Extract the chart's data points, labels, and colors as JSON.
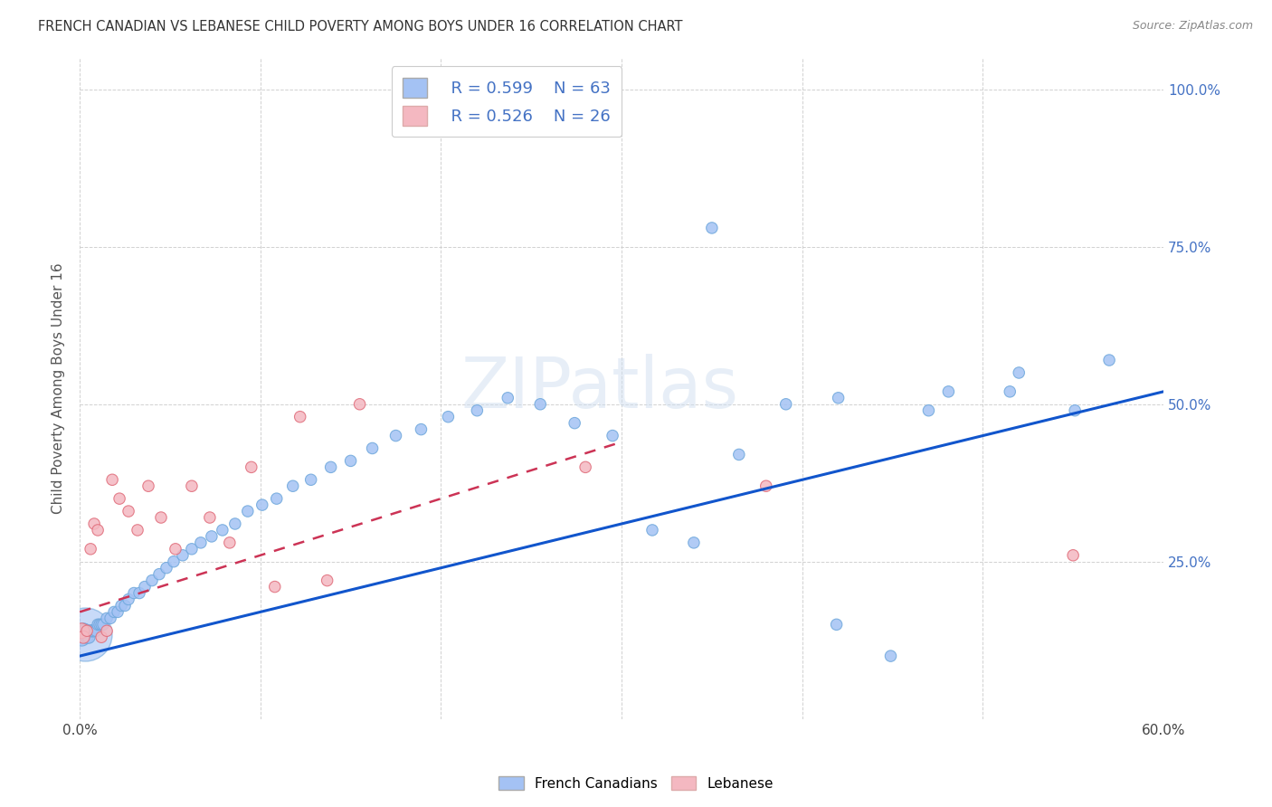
{
  "title": "FRENCH CANADIAN VS LEBANESE CHILD POVERTY AMONG BOYS UNDER 16 CORRELATION CHART",
  "source": "Source: ZipAtlas.com",
  "ylabel": "Child Poverty Among Boys Under 16",
  "xlim": [
    0.0,
    0.6
  ],
  "ylim": [
    0.0,
    1.05
  ],
  "xticks": [
    0.0,
    0.1,
    0.2,
    0.3,
    0.4,
    0.5,
    0.6
  ],
  "xticklabels": [
    "0.0%",
    "",
    "",
    "",
    "",
    "",
    "60.0%"
  ],
  "ytick_positions": [
    0.0,
    0.25,
    0.5,
    0.75,
    1.0
  ],
  "yticklabels": [
    "",
    "25.0%",
    "50.0%",
    "75.0%",
    "100.0%"
  ],
  "blue_color": "#a4c2f4",
  "pink_color": "#f4b8c1",
  "blue_edge_color": "#6fa8dc",
  "pink_edge_color": "#e06c7a",
  "blue_line_color": "#1155cc",
  "pink_line_color": "#cc3355",
  "watermark": "ZIPatlas",
  "legend_R_blue": "0.599",
  "legend_N_blue": "63",
  "legend_R_pink": "0.526",
  "legend_N_pink": "26",
  "fc_x": [
    0.001,
    0.002,
    0.003,
    0.004,
    0.005,
    0.006,
    0.007,
    0.008,
    0.009,
    0.01,
    0.011,
    0.012,
    0.013,
    0.015,
    0.017,
    0.019,
    0.021,
    0.023,
    0.025,
    0.027,
    0.03,
    0.033,
    0.036,
    0.04,
    0.044,
    0.048,
    0.052,
    0.057,
    0.062,
    0.067,
    0.073,
    0.079,
    0.086,
    0.093,
    0.101,
    0.109,
    0.118,
    0.128,
    0.139,
    0.15,
    0.162,
    0.175,
    0.189,
    0.204,
    0.22,
    0.237,
    0.255,
    0.274,
    0.295,
    0.317,
    0.34,
    0.365,
    0.391,
    0.419,
    0.449,
    0.481,
    0.515,
    0.551,
    0.35,
    0.42,
    0.47,
    0.52,
    0.57
  ],
  "fc_y": [
    0.13,
    0.14,
    0.14,
    0.13,
    0.13,
    0.14,
    0.14,
    0.14,
    0.14,
    0.15,
    0.15,
    0.15,
    0.15,
    0.16,
    0.16,
    0.17,
    0.17,
    0.18,
    0.18,
    0.19,
    0.2,
    0.2,
    0.21,
    0.22,
    0.23,
    0.24,
    0.25,
    0.26,
    0.27,
    0.28,
    0.29,
    0.3,
    0.31,
    0.33,
    0.34,
    0.35,
    0.37,
    0.38,
    0.4,
    0.41,
    0.43,
    0.45,
    0.46,
    0.48,
    0.49,
    0.51,
    0.5,
    0.47,
    0.45,
    0.3,
    0.28,
    0.42,
    0.5,
    0.15,
    0.1,
    0.52,
    0.52,
    0.49,
    0.78,
    0.51,
    0.49,
    0.55,
    0.57
  ],
  "fc_sizes": [
    200,
    150,
    120,
    100,
    100,
    90,
    90,
    90,
    80,
    80,
    80,
    80,
    80,
    80,
    80,
    80,
    80,
    80,
    80,
    80,
    80,
    80,
    80,
    80,
    80,
    80,
    80,
    80,
    80,
    80,
    80,
    80,
    80,
    80,
    80,
    80,
    80,
    80,
    80,
    80,
    80,
    80,
    80,
    80,
    80,
    80,
    80,
    80,
    80,
    80,
    80,
    80,
    80,
    80,
    80,
    80,
    80,
    80,
    80,
    80,
    80,
    80,
    80
  ],
  "lb_x": [
    0.001,
    0.002,
    0.004,
    0.006,
    0.008,
    0.01,
    0.012,
    0.015,
    0.018,
    0.022,
    0.027,
    0.032,
    0.038,
    0.045,
    0.053,
    0.062,
    0.072,
    0.083,
    0.095,
    0.108,
    0.122,
    0.137,
    0.155,
    0.28,
    0.38,
    0.55
  ],
  "lb_y": [
    0.14,
    0.13,
    0.14,
    0.27,
    0.31,
    0.3,
    0.13,
    0.14,
    0.38,
    0.35,
    0.33,
    0.3,
    0.37,
    0.32,
    0.27,
    0.37,
    0.32,
    0.28,
    0.4,
    0.21,
    0.48,
    0.22,
    0.5,
    0.4,
    0.37,
    0.26
  ],
  "lb_sizes": [
    150,
    100,
    80,
    80,
    80,
    80,
    80,
    80,
    80,
    80,
    80,
    80,
    80,
    80,
    80,
    80,
    80,
    80,
    80,
    80,
    80,
    80,
    80,
    80,
    80,
    80
  ],
  "blue_line_x0": 0.0,
  "blue_line_y0": 0.1,
  "blue_line_x1": 0.6,
  "blue_line_y1": 0.52,
  "pink_line_x0": 0.0,
  "pink_line_y0": 0.17,
  "pink_line_x1": 0.3,
  "pink_line_y1": 0.44
}
